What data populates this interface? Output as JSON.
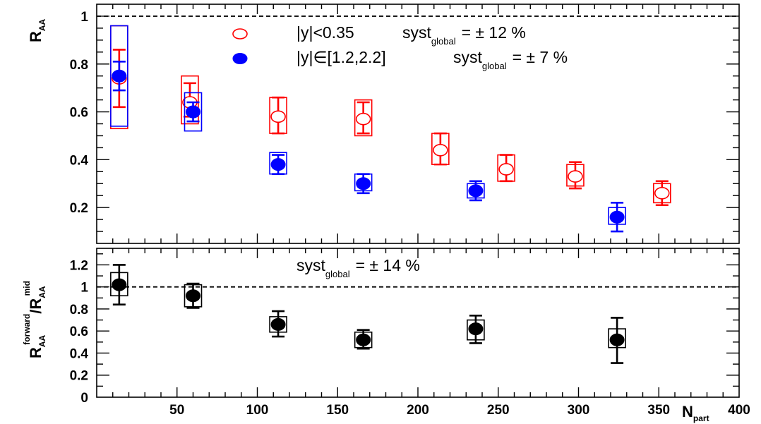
{
  "chart_data": [
    {
      "type": "scatter",
      "panel": "top",
      "ylabel": {
        "main": "R",
        "sub": "AA"
      },
      "xlim": [
        0,
        400
      ],
      "ylim": [
        0.05,
        1.05
      ],
      "yticks": [
        0.2,
        0.4,
        0.6,
        0.8,
        1
      ],
      "ytick_labels": [
        "0.2",
        "0.4",
        "0.6",
        "0.8",
        "1"
      ],
      "reference_line": 1,
      "legend_position": "top-center",
      "legend": [
        {
          "label": "|y|<0.35",
          "syst_word": "syst",
          "syst_sub": "global",
          "syst_value": "= ± 12 %",
          "marker": "open-circle",
          "color": "#ff0000"
        },
        {
          "label": "|y|∈[1.2,2.2]",
          "syst_word": "syst",
          "syst_sub": "global",
          "syst_value": "= ± 7 %",
          "marker": "filled-circle",
          "color": "#0000ff"
        }
      ],
      "series": [
        {
          "name": "|y|<0.35",
          "color": "#ff0000",
          "marker": "open",
          "points": [
            {
              "x": 14,
              "y": 0.74,
              "err_lo": 0.62,
              "err_hi": 0.86,
              "sys_lo": 0.53,
              "sys_hi": 0.96
            },
            {
              "x": 58,
              "y": 0.64,
              "err_lo": 0.58,
              "err_hi": 0.72,
              "sys_lo": 0.55,
              "sys_hi": 0.75
            },
            {
              "x": 113,
              "y": 0.58,
              "err_lo": 0.51,
              "err_hi": 0.66,
              "sys_lo": 0.51,
              "sys_hi": 0.66
            },
            {
              "x": 166,
              "y": 0.57,
              "err_lo": 0.51,
              "err_hi": 0.64,
              "sys_lo": 0.5,
              "sys_hi": 0.65
            },
            {
              "x": 214,
              "y": 0.44,
              "err_lo": 0.38,
              "err_hi": 0.51,
              "sys_lo": 0.38,
              "sys_hi": 0.51
            },
            {
              "x": 255,
              "y": 0.36,
              "err_lo": 0.31,
              "err_hi": 0.42,
              "sys_lo": 0.31,
              "sys_hi": 0.42
            },
            {
              "x": 298,
              "y": 0.33,
              "err_lo": 0.28,
              "err_hi": 0.39,
              "sys_lo": 0.29,
              "sys_hi": 0.38
            },
            {
              "x": 352,
              "y": 0.26,
              "err_lo": 0.21,
              "err_hi": 0.31,
              "sys_lo": 0.22,
              "sys_hi": 0.3
            }
          ]
        },
        {
          "name": "|y|∈[1.2,2.2]",
          "color": "#0000ff",
          "marker": "filled",
          "points": [
            {
              "x": 14,
              "y": 0.75,
              "err_lo": 0.69,
              "err_hi": 0.81,
              "sys_lo": 0.54,
              "sys_hi": 0.96
            },
            {
              "x": 60,
              "y": 0.6,
              "err_lo": 0.56,
              "err_hi": 0.64,
              "sys_lo": 0.52,
              "sys_hi": 0.68
            },
            {
              "x": 113,
              "y": 0.38,
              "err_lo": 0.34,
              "err_hi": 0.42,
              "sys_lo": 0.34,
              "sys_hi": 0.43
            },
            {
              "x": 166,
              "y": 0.3,
              "err_lo": 0.26,
              "err_hi": 0.34,
              "sys_lo": 0.27,
              "sys_hi": 0.34
            },
            {
              "x": 236,
              "y": 0.27,
              "err_lo": 0.23,
              "err_hi": 0.31,
              "sys_lo": 0.24,
              "sys_hi": 0.3
            },
            {
              "x": 324,
              "y": 0.16,
              "err_lo": 0.1,
              "err_hi": 0.22,
              "sys_lo": 0.13,
              "sys_hi": 0.2
            }
          ]
        }
      ]
    },
    {
      "type": "scatter",
      "panel": "bottom",
      "ylabel": {
        "main": "R",
        "main_sub": "AA",
        "main_sup": "forward",
        "sep": "/R",
        "den_sub": "AA",
        "den_sup": "mid"
      },
      "xlabel": {
        "main": "N",
        "sub": "part"
      },
      "xlim": [
        0,
        400
      ],
      "ylim": [
        0,
        1.35
      ],
      "xticks": [
        50,
        100,
        150,
        200,
        250,
        300,
        350,
        400
      ],
      "xtick_labels": [
        "50",
        "100",
        "150",
        "200",
        "250",
        "300",
        "350",
        "400"
      ],
      "yticks": [
        0,
        0.2,
        0.4,
        0.6,
        0.8,
        1,
        1.2
      ],
      "ytick_labels": [
        "0",
        "0.2",
        "0.4",
        "0.6",
        "0.8",
        "1",
        "1.2"
      ],
      "reference_line": 1,
      "annotation": {
        "word": "syst",
        "sub": "global",
        "value": "= ± 14 %"
      },
      "series": [
        {
          "color": "#000000",
          "marker": "filled",
          "points": [
            {
              "x": 14,
              "y": 1.02,
              "err_lo": 0.84,
              "err_hi": 1.2,
              "sys_lo": 0.92,
              "sys_hi": 1.13
            },
            {
              "x": 60,
              "y": 0.92,
              "err_lo": 0.81,
              "err_hi": 1.03,
              "sys_lo": 0.82,
              "sys_hi": 1.02
            },
            {
              "x": 113,
              "y": 0.66,
              "err_lo": 0.55,
              "err_hi": 0.78,
              "sys_lo": 0.59,
              "sys_hi": 0.73
            },
            {
              "x": 166,
              "y": 0.52,
              "err_lo": 0.44,
              "err_hi": 0.61,
              "sys_lo": 0.45,
              "sys_hi": 0.59
            },
            {
              "x": 236,
              "y": 0.62,
              "err_lo": 0.49,
              "err_hi": 0.74,
              "sys_lo": 0.52,
              "sys_hi": 0.7
            },
            {
              "x": 324,
              "y": 0.52,
              "err_lo": 0.31,
              "err_hi": 0.72,
              "sys_lo": 0.45,
              "sys_hi": 0.62
            }
          ]
        }
      ]
    }
  ]
}
